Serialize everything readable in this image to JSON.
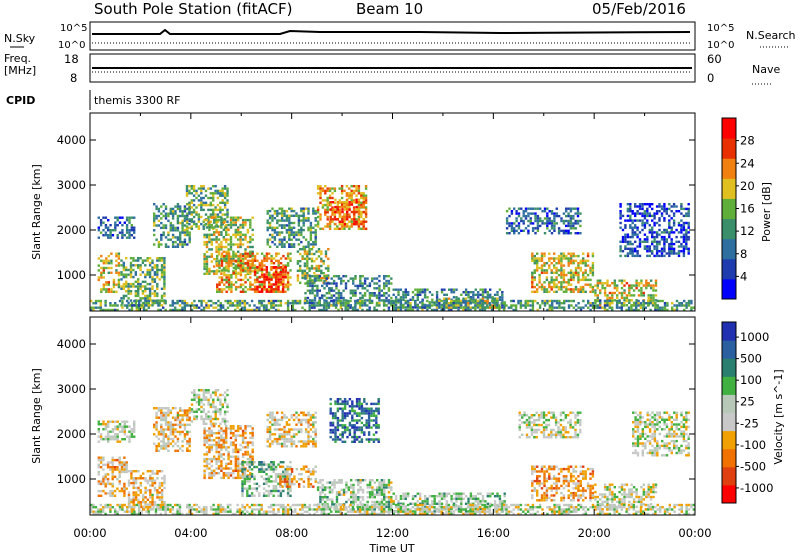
{
  "header": {
    "station": "South Pole Station (fitACF)",
    "beam": "Beam 10",
    "date": "05/Feb/2016"
  },
  "summary_panels": {
    "nsky_label": "N.Sky",
    "nsky_ticks": [
      "10^5",
      "10^0"
    ],
    "nsearch_label": "N.Search",
    "freq_label_1": "Freq.",
    "freq_label_2": "[MHz]",
    "freq_ticks": [
      "18",
      "8"
    ],
    "nave_label": "Nave",
    "nave_ticks": [
      "60",
      "0"
    ],
    "cpid_label": "CPID",
    "cpid_text": "themis 3300 RF"
  },
  "chart_data": [
    {
      "type": "heatmap",
      "name": "power",
      "xlabel": "",
      "ylabel": "Slant Range [km]",
      "xlim": [
        0,
        24
      ],
      "ylim": [
        200,
        4600
      ],
      "y_ticks": [
        1000,
        2000,
        3000,
        4000
      ],
      "colorbar": {
        "label": "Power [dB]",
        "ticks": [
          "4",
          "8",
          "12",
          "16",
          "20",
          "24",
          "28"
        ],
        "range": [
          0,
          30
        ]
      },
      "regions": [
        {
          "t0": 0.3,
          "t1": 1.8,
          "r0": 1800,
          "r1": 2300,
          "v": 8
        },
        {
          "t0": 0.3,
          "t1": 1.2,
          "r0": 600,
          "r1": 1500,
          "v": 18
        },
        {
          "t0": 1.2,
          "t1": 3.0,
          "r0": 300,
          "r1": 1400,
          "v": 14
        },
        {
          "t0": 2.5,
          "t1": 4.0,
          "r0": 1600,
          "r1": 2600,
          "v": 12
        },
        {
          "t0": 3.8,
          "t1": 5.5,
          "r0": 2000,
          "r1": 3000,
          "v": 14
        },
        {
          "t0": 4.5,
          "t1": 6.5,
          "r0": 1000,
          "r1": 2300,
          "v": 16
        },
        {
          "t0": 5.0,
          "t1": 8.0,
          "r0": 600,
          "r1": 1500,
          "v": 20
        },
        {
          "t0": 6.5,
          "t1": 7.8,
          "r0": 600,
          "r1": 1200,
          "v": 26
        },
        {
          "t0": 7.0,
          "t1": 9.0,
          "r0": 1600,
          "r1": 2500,
          "v": 12
        },
        {
          "t0": 8.2,
          "t1": 9.5,
          "r0": 800,
          "r1": 1600,
          "v": 16
        },
        {
          "t0": 9.0,
          "t1": 11.0,
          "r0": 2000,
          "r1": 3000,
          "v": 20
        },
        {
          "t0": 9.5,
          "t1": 11.0,
          "r0": 2100,
          "r1": 2700,
          "v": 24
        },
        {
          "t0": 8.5,
          "t1": 12.0,
          "r0": 300,
          "r1": 1000,
          "v": 10
        },
        {
          "t0": 12.0,
          "t1": 16.5,
          "r0": 250,
          "r1": 700,
          "v": 10
        },
        {
          "t0": 14.0,
          "t1": 16.5,
          "r0": 250,
          "r1": 500,
          "v": 16
        },
        {
          "t0": 16.5,
          "t1": 19.5,
          "r0": 1900,
          "r1": 2500,
          "v": 8
        },
        {
          "t0": 17.5,
          "t1": 20.0,
          "r0": 600,
          "r1": 1500,
          "v": 18
        },
        {
          "t0": 20.0,
          "t1": 22.5,
          "r0": 300,
          "r1": 900,
          "v": 18
        },
        {
          "t0": 21.0,
          "t1": 23.8,
          "r0": 1400,
          "r1": 2600,
          "v": 6
        },
        {
          "t0": 0.0,
          "t1": 24.0,
          "r0": 200,
          "r1": 450,
          "v": 12
        }
      ]
    },
    {
      "type": "heatmap",
      "name": "velocity",
      "xlabel": "Time UT",
      "ylabel": "Slant Range [km]",
      "xlim": [
        0,
        24
      ],
      "ylim": [
        200,
        4600
      ],
      "x_ticks": [
        "00:00",
        "04:00",
        "08:00",
        "12:00",
        "16:00",
        "20:00",
        "00:00"
      ],
      "y_ticks": [
        1000,
        2000,
        3000,
        4000
      ],
      "colorbar": {
        "label": "Velocity [m s^-1]",
        "ticks": [
          "1000",
          "500",
          "100",
          "25",
          "-25",
          "-100",
          "-500",
          "-1000"
        ],
        "range": [
          -1200,
          1200
        ]
      },
      "regions": [
        {
          "t0": 0.3,
          "t1": 1.8,
          "r0": 1800,
          "r1": 2300,
          "v": 10
        },
        {
          "t0": 0.3,
          "t1": 1.5,
          "r0": 600,
          "r1": 1500,
          "v": -300
        },
        {
          "t0": 1.5,
          "t1": 3.0,
          "r0": 300,
          "r1": 1200,
          "v": -200
        },
        {
          "t0": 2.5,
          "t1": 4.0,
          "r0": 1600,
          "r1": 2600,
          "v": -200
        },
        {
          "t0": 4.0,
          "t1": 5.5,
          "r0": 2200,
          "r1": 3000,
          "v": 10
        },
        {
          "t0": 4.5,
          "t1": 6.5,
          "r0": 1000,
          "r1": 2200,
          "v": -300
        },
        {
          "t0": 6.0,
          "t1": 8.0,
          "r0": 600,
          "r1": 1400,
          "v": 300
        },
        {
          "t0": 7.5,
          "t1": 9.0,
          "r0": 800,
          "r1": 1300,
          "v": -400
        },
        {
          "t0": 7.0,
          "t1": 9.0,
          "r0": 1700,
          "r1": 2500,
          "v": -150
        },
        {
          "t0": 9.5,
          "t1": 11.5,
          "r0": 1800,
          "r1": 2800,
          "v": 700
        },
        {
          "t0": 9.0,
          "t1": 12.0,
          "r0": 300,
          "r1": 1000,
          "v": 150
        },
        {
          "t0": 12.0,
          "t1": 16.5,
          "r0": 250,
          "r1": 700,
          "v": 200
        },
        {
          "t0": 17.0,
          "t1": 19.5,
          "r0": 1900,
          "r1": 2500,
          "v": 10
        },
        {
          "t0": 17.5,
          "t1": 20.0,
          "r0": 500,
          "r1": 1300,
          "v": -400
        },
        {
          "t0": 20.0,
          "t1": 22.5,
          "r0": 300,
          "r1": 900,
          "v": -10
        },
        {
          "t0": 21.5,
          "t1": 23.8,
          "r0": 1500,
          "r1": 2500,
          "v": 10
        },
        {
          "t0": 0.0,
          "t1": 24.0,
          "r0": 200,
          "r1": 450,
          "v": 10
        }
      ]
    }
  ],
  "palette": {
    "power": [
      "#0000ff",
      "#1f3cae",
      "#2e6fa0",
      "#3a8f6a",
      "#5fae3a",
      "#e0c020",
      "#f08010",
      "#e83000",
      "#ff0000"
    ],
    "velocity": [
      "#ff0000",
      "#e04010",
      "#f07000",
      "#f0a000",
      "#c8c8c8",
      "#b8c8b8",
      "#40b040",
      "#2a7f6f",
      "#2a60a0",
      "#2030b0"
    ]
  }
}
